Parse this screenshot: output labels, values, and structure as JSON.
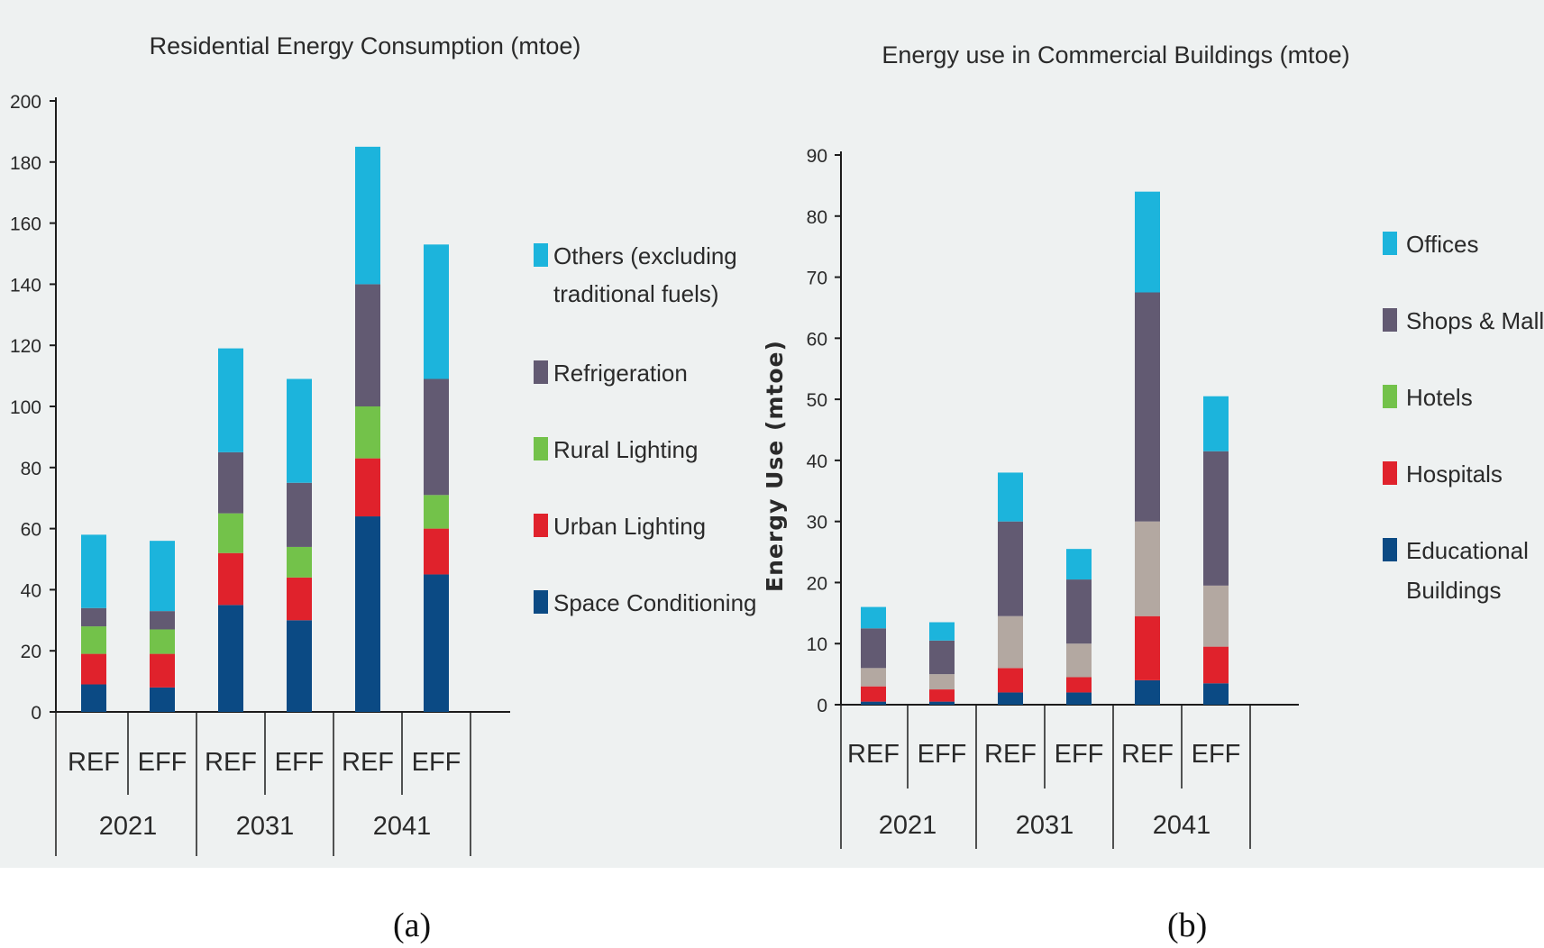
{
  "colors": {
    "axis": "#1c1c1c",
    "text": "#2a2a2a",
    "offices": "#1cb4dc",
    "others": "#1cb4dc",
    "refrigeration": "#625a72",
    "shops": "#625a72",
    "rural": "#73c24a",
    "hotels": "#73c24a",
    "urban": "#e0222c",
    "hospitals": "#e0222c",
    "space": "#0b4a84",
    "educational": "#0b4a84",
    "unlabeled": "#b3a8a1"
  },
  "chart_data": [
    {
      "type": "bar",
      "stacked": true,
      "title": "Residential Energy Consumption (mtoe)",
      "ylabel": "",
      "ylim": [
        0,
        200
      ],
      "yticks": [
        "0",
        "20",
        "40",
        "60",
        "80",
        "100",
        "120",
        "140",
        "160",
        "180",
        "200"
      ],
      "categories": [
        "REF",
        "EFF",
        "REF",
        "EFF",
        "REF",
        "EFF"
      ],
      "groups": [
        "2021",
        "2031",
        "2041"
      ],
      "legend_position": "right",
      "series": [
        {
          "name": "Space Conditioning",
          "color_key": "space",
          "values": [
            9,
            8,
            35,
            30,
            64,
            45
          ]
        },
        {
          "name": "Urban Lighting",
          "color_key": "urban",
          "values": [
            10,
            11,
            17,
            14,
            19,
            15
          ]
        },
        {
          "name": "Rural Lighting",
          "color_key": "rural",
          "values": [
            9,
            8,
            13,
            10,
            17,
            11
          ]
        },
        {
          "name": "Refrigeration",
          "color_key": "refrigeration",
          "values": [
            6,
            6,
            20,
            21,
            40,
            38
          ]
        },
        {
          "name": "Others (excluding traditional fuels)",
          "color_key": "others",
          "values": [
            24,
            23,
            34,
            34,
            45,
            44
          ]
        }
      ],
      "legend_order": [
        "Others (excluding traditional fuels)",
        "Refrigeration",
        "Rural Lighting",
        "Urban Lighting",
        "Space Conditioning"
      ],
      "legend_lines": [
        [
          "Others (excluding",
          "traditional fuels)"
        ],
        [
          "Refrigeration"
        ],
        [
          "Rural Lighting"
        ],
        [
          "Urban Lighting"
        ],
        [
          "Space Conditioning"
        ]
      ],
      "subfigure_label": "(a)"
    },
    {
      "type": "bar",
      "stacked": true,
      "title": "Energy use in Commercial Buildings (mtoe)",
      "ylabel": "Energy Use (mtoe)",
      "ylim": [
        0,
        90
      ],
      "yticks": [
        "0",
        "10",
        "20",
        "30",
        "40",
        "50",
        "60",
        "70",
        "80",
        "90"
      ],
      "categories": [
        "REF",
        "EFF",
        "REF",
        "EFF",
        "REF",
        "EFF"
      ],
      "groups": [
        "2021",
        "2031",
        "2041"
      ],
      "legend_position": "right",
      "series": [
        {
          "name": "Educational Buildings",
          "color_key": "educational",
          "values": [
            0.5,
            0.5,
            2,
            2,
            4,
            3.5
          ]
        },
        {
          "name": "Hospitals",
          "color_key": "hospitals",
          "values": [
            2.5,
            2,
            4,
            2.5,
            10.5,
            6
          ]
        },
        {
          "name": "",
          "color_key": "unlabeled",
          "values": [
            3,
            2.5,
            8.5,
            5.5,
            15.5,
            10
          ]
        },
        {
          "name": "Shops & Malls",
          "color_key": "shops",
          "values": [
            6.5,
            5.5,
            15.5,
            10.5,
            37.5,
            22
          ]
        },
        {
          "name": "Offices",
          "color_key": "offices",
          "values": [
            3.5,
            3,
            8,
            5,
            16.5,
            9
          ]
        }
      ],
      "legend_order": [
        "Offices",
        "Shops & Malls",
        "Hotels",
        "Hospitals",
        "Educational Buildings"
      ],
      "legend_lines": [
        [
          "Offices"
        ],
        [
          "Shops & Malls"
        ],
        [
          "Hotels"
        ],
        [
          "Hospitals"
        ],
        [
          "Educational",
          "Buildings"
        ]
      ],
      "legend_color_keys": [
        "offices",
        "shops",
        "hotels",
        "hospitals",
        "educational"
      ],
      "subfigure_label": "(b)"
    }
  ]
}
